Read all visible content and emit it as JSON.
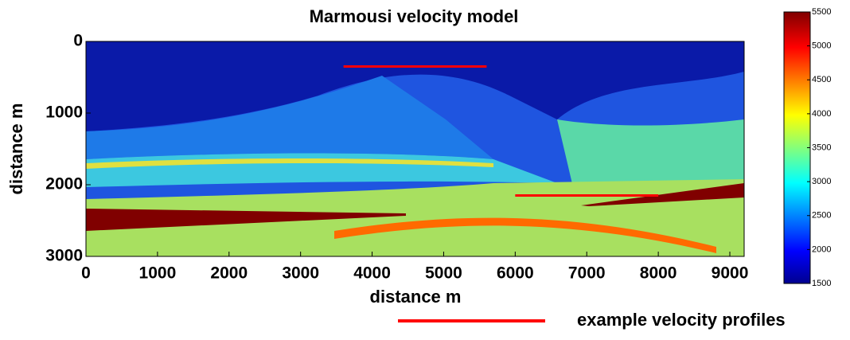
{
  "chart_data": {
    "type": "heatmap",
    "title": "Marmousi velocity model",
    "x_label": "distance m",
    "y_label": "distance m",
    "xlim": [
      0,
      9200
    ],
    "xticks": [
      0,
      1000,
      2000,
      3000,
      4000,
      5000,
      6000,
      7000,
      8000,
      9000
    ],
    "ylim": [
      0,
      3000
    ],
    "y_inverted": true,
    "yticks": [
      0,
      1000,
      2000,
      3000
    ],
    "colorbar": {
      "lim": [
        1500,
        5500
      ],
      "ticks": [
        1500,
        2000,
        2500,
        3000,
        3500,
        4000,
        4500,
        5000,
        5500
      ],
      "colormap": "jet"
    },
    "profiles": {
      "name": "example velocity profiles",
      "color": "#ff0000",
      "lines": [
        {
          "x": [
            3600,
            5600
          ],
          "y": 350
        },
        {
          "x": [
            6000,
            8000
          ],
          "y": 2150
        }
      ]
    }
  }
}
